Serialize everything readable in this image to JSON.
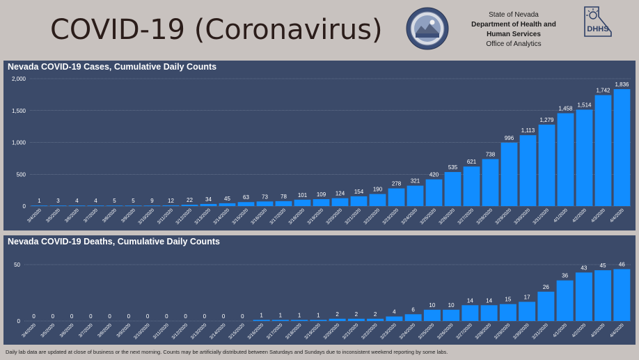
{
  "header": {
    "title": "COVID-19 (Coronavirus)",
    "agency": {
      "line1": "State of Nevada",
      "line2": "Department of Health and",
      "line3": "Human Services",
      "line4": "Office of Analytics"
    },
    "seal_icon": "nevada-state-seal-icon",
    "logo_icon": "dhhs-logo-icon",
    "logo_text": "DHHS"
  },
  "footnote": "Daily lab data are updated at close of business or the next morning.  Counts may be artificially distributed between Saturdays and Sundays due to inconsistent weekend reporting by some labs.",
  "colors": {
    "bar": "#118dff",
    "panel": "#3b4a69",
    "page": "#c8c2bf"
  },
  "chart_data": [
    {
      "type": "bar",
      "title": "Nevada COVID-19 Cases, Cumulative Daily Counts",
      "categories": [
        "3/4/2020",
        "3/5/2020",
        "3/6/2020",
        "3/7/2020",
        "3/8/2020",
        "3/9/2020",
        "3/10/2020",
        "3/11/2020",
        "3/12/2020",
        "3/13/2020",
        "3/14/2020",
        "3/15/2020",
        "3/16/2020",
        "3/17/2020",
        "3/18/2020",
        "3/19/2020",
        "3/20/2020",
        "3/21/2020",
        "3/22/2020",
        "3/23/2020",
        "3/24/2020",
        "3/25/2020",
        "3/26/2020",
        "3/27/2020",
        "3/28/2020",
        "3/29/2020",
        "3/30/2020",
        "3/31/2020",
        "4/1/2020",
        "4/2/2020",
        "4/3/2020",
        "4/4/2020"
      ],
      "values": [
        1,
        3,
        4,
        4,
        5,
        5,
        9,
        12,
        22,
        34,
        45,
        63,
        73,
        78,
        101,
        109,
        124,
        154,
        190,
        278,
        321,
        420,
        535,
        621,
        738,
        996,
        1113,
        1279,
        1458,
        1514,
        1742,
        1836
      ],
      "ylim": [
        0,
        2000
      ],
      "yticks": [
        0,
        500,
        1000,
        1500,
        2000
      ],
      "ytick_labels": [
        "0",
        "500",
        "1,000",
        "1,500",
        "2,000"
      ],
      "grid": true
    },
    {
      "type": "bar",
      "title": "Nevada COVID-19 Deaths, Cumulative Daily Counts",
      "categories": [
        "3/4/2020",
        "3/5/2020",
        "3/6/2020",
        "3/7/2020",
        "3/8/2020",
        "3/9/2020",
        "3/10/2020",
        "3/11/2020",
        "3/12/2020",
        "3/13/2020",
        "3/14/2020",
        "3/15/2020",
        "3/16/2020",
        "3/17/2020",
        "3/18/2020",
        "3/19/2020",
        "3/20/2020",
        "3/21/2020",
        "3/22/2020",
        "3/23/2020",
        "3/24/2020",
        "3/25/2020",
        "3/26/2020",
        "3/27/2020",
        "3/28/2020",
        "3/29/2020",
        "3/30/2020",
        "3/31/2020",
        "4/1/2020",
        "4/2/2020",
        "4/3/2020",
        "4/4/2020"
      ],
      "values": [
        0,
        0,
        0,
        0,
        0,
        0,
        0,
        0,
        0,
        0,
        0,
        0,
        1,
        1,
        1,
        1,
        2,
        2,
        2,
        4,
        6,
        10,
        10,
        14,
        14,
        15,
        17,
        26,
        36,
        43,
        45,
        46
      ],
      "ylim": [
        0,
        50
      ],
      "yticks": [
        0,
        50
      ],
      "ytick_labels": [
        "0",
        "50"
      ],
      "grid": true
    }
  ]
}
